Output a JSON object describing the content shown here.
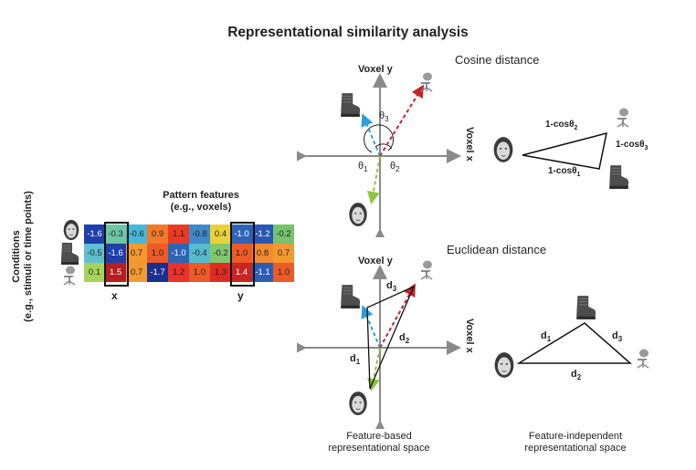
{
  "title": "Representational similarity analysis",
  "matrix": {
    "header_line1": "Pattern features",
    "header_line2": "(e.g., voxels)",
    "side_line1": "Conditions",
    "side_line2": "(e.g., stimuli or time points)",
    "x_label": "x",
    "y_label": "y",
    "rows": [
      [
        {
          "v": "-1.6",
          "c": "#1f3fa8"
        },
        {
          "v": "-0.3",
          "c": "#6fc6a3"
        },
        {
          "v": "-0.6",
          "c": "#49b7d6"
        },
        {
          "v": "0.9",
          "c": "#f07a2a"
        },
        {
          "v": "1.1",
          "c": "#e83a25"
        },
        {
          "v": "-0.8",
          "c": "#3f88c9"
        },
        {
          "v": "0.4",
          "c": "#e8d23c"
        },
        {
          "v": "-1.0",
          "c": "#2e64b8"
        },
        {
          "v": "-1.2",
          "c": "#2a58b0"
        },
        {
          "v": "-0.2",
          "c": "#76c26f"
        }
      ],
      [
        {
          "v": "-0.5",
          "c": "#5fbfd3"
        },
        {
          "v": "-1.6",
          "c": "#1f3fa8"
        },
        {
          "v": "0.7",
          "c": "#f29a31"
        },
        {
          "v": "1.0",
          "c": "#ec5b27"
        },
        {
          "v": "-1.0",
          "c": "#2e64b8"
        },
        {
          "v": "-0.4",
          "c": "#57bacf"
        },
        {
          "v": "-0.2",
          "c": "#80c86c"
        },
        {
          "v": "1.0",
          "c": "#ec5b27"
        },
        {
          "v": "0.8",
          "c": "#f28a2e"
        },
        {
          "v": "0.7",
          "c": "#f29a31"
        }
      ],
      [
        {
          "v": "0.1",
          "c": "#a8d35a"
        },
        {
          "v": "1.5",
          "c": "#b51f22"
        },
        {
          "v": "0.7",
          "c": "#f29a31"
        },
        {
          "v": "-1.7",
          "c": "#1a2f8f"
        },
        {
          "v": "1.2",
          "c": "#e8322a"
        },
        {
          "v": "1.0",
          "c": "#ec5b27"
        },
        {
          "v": "1.3",
          "c": "#de2b26"
        },
        {
          "v": "1.4",
          "c": "#c92524"
        },
        {
          "v": "-1.1",
          "c": "#2c5db4"
        },
        {
          "v": "1.0",
          "c": "#ec5b27"
        }
      ]
    ]
  },
  "cosine": {
    "heading": "Cosine distance",
    "voxel_y": "Voxel y",
    "voxel_x": "Voxel x",
    "theta1": "θ",
    "theta1_sub": "1",
    "theta2": "θ",
    "theta2_sub": "2",
    "theta3": "θ",
    "theta3_sub": "3",
    "edge_top": "1-cosθ",
    "edge_top_sub": "2",
    "edge_right": "1-cosθ",
    "edge_right_sub": "3",
    "edge_bottom": "1-cosθ",
    "edge_bottom_sub": "1"
  },
  "euclid": {
    "heading": "Euclidean distance",
    "voxel_y": "Voxel y",
    "voxel_x": "Voxel x",
    "d1": "d",
    "d1_sub": "1",
    "d2": "d",
    "d2_sub": "2",
    "d3": "d",
    "d3_sub": "3",
    "tri_d1": "d",
    "tri_d1_sub": "1",
    "tri_d2": "d",
    "tri_d2_sub": "2",
    "tri_d3": "d",
    "tri_d3_sub": "3"
  },
  "captions": {
    "left_line1": "Feature-based",
    "left_line2": "representational space",
    "right_line1": "Feature-independent",
    "right_line2": "representational space"
  },
  "icons": {
    "face": "face-icon",
    "boot": "boot-icon",
    "chair": "chair-icon"
  },
  "colors": {
    "face_vector": "#8cc63f",
    "boot_vector": "#2e9fd8",
    "chair_vector": "#c1272d",
    "axis": "#8a8a8a"
  }
}
